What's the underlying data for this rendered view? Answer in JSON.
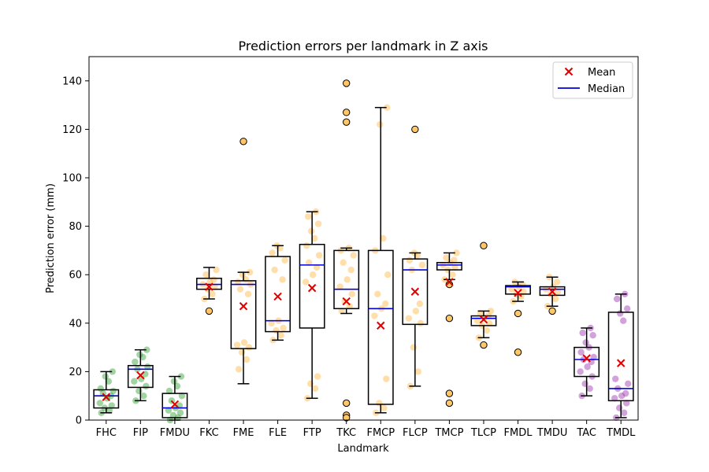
{
  "chart_data": {
    "type": "box",
    "title": "Prediction errors per landmark in Z axis",
    "xlabel": "Landmark",
    "ylabel": "Prediction error (mm)",
    "ylim": [
      0,
      150
    ],
    "yticks": [
      0,
      20,
      40,
      60,
      80,
      100,
      120,
      140
    ],
    "grid": false,
    "legend": {
      "placement": "top-right",
      "entries": [
        {
          "label": "Mean",
          "marker": "x",
          "color": "#e00000"
        },
        {
          "label": "Median",
          "marker": "line",
          "color": "#0000dd"
        }
      ]
    },
    "colors": {
      "green": "#2ca02c",
      "orange": "#ffb640",
      "purple": "#9b30b0",
      "outlier_fill": "#ffc766",
      "mean": "#e00000",
      "median": "#0000dd",
      "box": "#000000"
    },
    "landmarks": [
      {
        "name": "FHC",
        "color": "green",
        "q1": 5,
        "median": 10,
        "q3": 12.5,
        "whislo": 3,
        "whishi": 20,
        "mean": 9.5,
        "outliers": [],
        "points": [
          3,
          4,
          5,
          6,
          7,
          9,
          10,
          11,
          12,
          13,
          16,
          18,
          20
        ]
      },
      {
        "name": "FIP",
        "color": "green",
        "q1": 13.5,
        "median": 21,
        "q3": 22.5,
        "whislo": 8,
        "whishi": 29,
        "mean": 18.5,
        "outliers": [],
        "points": [
          8,
          10,
          12,
          14,
          16,
          17,
          19,
          21,
          22,
          24,
          26,
          27,
          29
        ]
      },
      {
        "name": "FMDU",
        "color": "green",
        "q1": 1,
        "median": 5,
        "q3": 11,
        "whislo": 0,
        "whishi": 18,
        "mean": 6.5,
        "outliers": [],
        "points": [
          0,
          1,
          2,
          3,
          4,
          5,
          6,
          8,
          10,
          12,
          14,
          16,
          18
        ]
      },
      {
        "name": "FKC",
        "color": "orange",
        "q1": 54,
        "median": 56,
        "q3": 58.5,
        "whislo": 50,
        "whishi": 63,
        "mean": 55,
        "outliers": [
          45
        ],
        "points": [
          50,
          52,
          54,
          55,
          56,
          57,
          58,
          60,
          62
        ]
      },
      {
        "name": "FME",
        "color": "orange",
        "q1": 29.5,
        "median": 56,
        "q3": 57.5,
        "whislo": 15,
        "whishi": 61,
        "mean": 47,
        "outliers": [
          115
        ],
        "points": [
          21,
          25,
          28,
          30,
          31,
          32,
          52,
          54,
          56,
          57,
          58,
          60,
          61
        ]
      },
      {
        "name": "FLE",
        "color": "orange",
        "q1": 36.5,
        "median": 41,
        "q3": 67.5,
        "whislo": 33,
        "whishi": 72,
        "mean": 51,
        "outliers": [],
        "points": [
          33,
          35,
          37,
          38,
          40,
          41,
          58,
          62,
          66,
          69,
          71,
          72
        ]
      },
      {
        "name": "FTP",
        "color": "orange",
        "q1": 38,
        "median": 64,
        "q3": 72.5,
        "whislo": 9,
        "whishi": 86,
        "mean": 54.5,
        "outliers": [],
        "points": [
          9,
          13,
          15,
          18,
          57,
          60,
          63,
          65,
          68,
          72,
          75,
          78,
          81,
          84,
          86
        ]
      },
      {
        "name": "TKC",
        "color": "orange",
        "q1": 46,
        "median": 54,
        "q3": 70,
        "whislo": 44,
        "whishi": 71,
        "mean": 49,
        "outliers": [
          139,
          127,
          123,
          7,
          2,
          1
        ],
        "points": [
          45,
          47,
          49,
          52,
          55,
          58,
          62,
          65,
          68,
          70,
          71
        ]
      },
      {
        "name": "FMCP",
        "color": "orange",
        "q1": 6.5,
        "median": 46,
        "q3": 70,
        "whislo": 3,
        "whishi": 129,
        "mean": 39,
        "outliers": [],
        "points": [
          3,
          5,
          7,
          17,
          43,
          46,
          48,
          52,
          60,
          70,
          75,
          122,
          129
        ]
      },
      {
        "name": "FLCP",
        "color": "orange",
        "q1": 39.5,
        "median": 62,
        "q3": 66.5,
        "whislo": 14,
        "whishi": 69,
        "mean": 53,
        "outliers": [
          120
        ],
        "points": [
          14,
          20,
          30,
          40,
          42,
          45,
          48,
          62,
          64,
          66,
          68,
          69
        ]
      },
      {
        "name": "TMCP",
        "color": "orange",
        "q1": 62,
        "median": 64,
        "q3": 65,
        "whislo": 58,
        "whishi": 69,
        "mean": 57,
        "outliers": [
          56,
          42,
          11,
          7
        ],
        "points": [
          58,
          60,
          62,
          63,
          64,
          65,
          66,
          67,
          69
        ]
      },
      {
        "name": "TLCP",
        "color": "orange",
        "q1": 39,
        "median": 42,
        "q3": 43,
        "whislo": 34,
        "whishi": 45,
        "mean": 41.5,
        "outliers": [
          72,
          31
        ],
        "points": [
          34,
          37,
          39,
          40,
          41,
          42,
          43,
          44,
          45
        ]
      },
      {
        "name": "FMDL",
        "color": "orange",
        "q1": 52,
        "median": 55,
        "q3": 55.5,
        "whislo": 49,
        "whishi": 57,
        "mean": 52.5,
        "outliers": [
          44,
          28
        ],
        "points": [
          49,
          51,
          52,
          53,
          54,
          55,
          56,
          57
        ]
      },
      {
        "name": "TMDU",
        "color": "orange",
        "q1": 51.5,
        "median": 54,
        "q3": 55,
        "whislo": 47,
        "whishi": 59,
        "mean": 53,
        "outliers": [
          45
        ],
        "points": [
          47,
          50,
          52,
          53,
          54,
          55,
          57,
          59
        ]
      },
      {
        "name": "TAC",
        "color": "purple",
        "q1": 18,
        "median": 25,
        "q3": 30,
        "whislo": 10,
        "whishi": 38,
        "mean": 25.5,
        "outliers": [],
        "points": [
          10,
          13,
          15,
          18,
          20,
          22,
          24,
          25,
          26,
          28,
          30,
          32,
          35,
          36,
          38
        ]
      },
      {
        "name": "TMDL",
        "color": "purple",
        "q1": 8,
        "median": 13,
        "q3": 44.5,
        "whislo": 1,
        "whishi": 52,
        "mean": 23.5,
        "outliers": [],
        "points": [
          1,
          3,
          5,
          7,
          9,
          10,
          11,
          13,
          15,
          17,
          41,
          44,
          46,
          50,
          52
        ]
      }
    ]
  }
}
